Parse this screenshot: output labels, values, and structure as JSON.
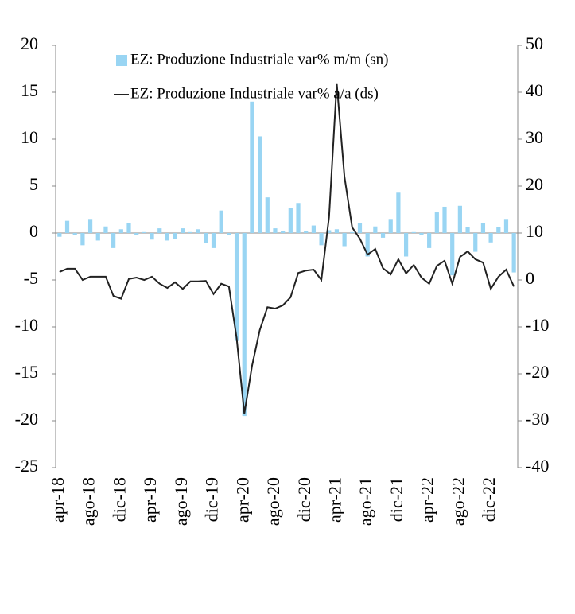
{
  "chart_data": {
    "type": "bar-line",
    "categories": [
      "apr-18",
      null,
      null,
      null,
      "ago-18",
      null,
      null,
      null,
      "dic-18",
      null,
      null,
      null,
      "apr-19",
      null,
      null,
      null,
      "ago-19",
      null,
      null,
      null,
      "dic-19",
      null,
      null,
      null,
      "apr-20",
      null,
      null,
      null,
      "ago-20",
      null,
      null,
      null,
      "dic-20",
      null,
      null,
      null,
      "apr-21",
      null,
      null,
      null,
      "ago-21",
      null,
      null,
      null,
      "dic-21",
      null,
      null,
      null,
      "apr-22",
      null,
      null,
      null,
      "ago-22",
      null,
      null,
      null,
      "dic-22",
      null,
      null,
      null
    ],
    "series": [
      {
        "name": "EZ: Produzione Industriale var% m/m (sn)",
        "type": "bar",
        "axis": "y",
        "color": "#99d5f3",
        "values": [
          -0.4,
          1.3,
          -0.2,
          -1.3,
          1.5,
          -0.8,
          0.7,
          -1.6,
          0.4,
          1.1,
          -0.2,
          0.1,
          -0.7,
          0.5,
          -0.8,
          -0.6,
          0.5,
          0.1,
          0.4,
          -1.1,
          -1.6,
          2.4,
          -0.2,
          -11.5,
          -19.5,
          14,
          10.3,
          3.8,
          0.5,
          0.2,
          2.7,
          3.2,
          0.2,
          0.8,
          -1.3,
          0.3,
          0.4,
          -1.4,
          0.1,
          1.1,
          -2.5,
          0.7,
          -0.5,
          1.5,
          4.3,
          -2.5,
          0.1,
          -0.2,
          -1.6,
          2.2,
          2.8,
          -4.5,
          2.9,
          0.6,
          -2.0,
          1.1,
          -1.0,
          0.6,
          1.5,
          -4.2
        ]
      },
      {
        "name": "EZ: Produzione Industriale var% a/a (ds)",
        "type": "line",
        "axis": "y2",
        "color": "#222222",
        "values": [
          1.7,
          2.4,
          2.4,
          0,
          0.7,
          0.7,
          0.7,
          -3.4,
          -4,
          0.2,
          0.5,
          0,
          0.7,
          -0.8,
          -1.7,
          -0.5,
          -1.9,
          -0.3,
          -0.3,
          -0.2,
          -3,
          -0.8,
          -1.4,
          -12.4,
          -28.5,
          -18.3,
          -10.7,
          -5.8,
          -6.1,
          -5.4,
          -3.7,
          1.5,
          2,
          2.2,
          0,
          13.4,
          41.9,
          22,
          11.2,
          8.8,
          5.4,
          6.6,
          2.5,
          1.2,
          4.4,
          1.4,
          3.2,
          0.5,
          -0.8,
          3,
          4.1,
          -0.8,
          4.9,
          6.1,
          4.4,
          3.7,
          -1.9,
          0.7,
          2.2,
          -1.4
        ]
      }
    ],
    "ylim": [
      -25,
      20
    ],
    "yticks": [
      -25,
      -20,
      -15,
      -10,
      -5,
      0,
      5,
      10,
      15,
      20
    ],
    "y2lim": [
      -40,
      50
    ],
    "y2ticks": [
      -40,
      -30,
      -20,
      -10,
      0,
      10,
      20,
      30,
      40,
      50
    ]
  }
}
